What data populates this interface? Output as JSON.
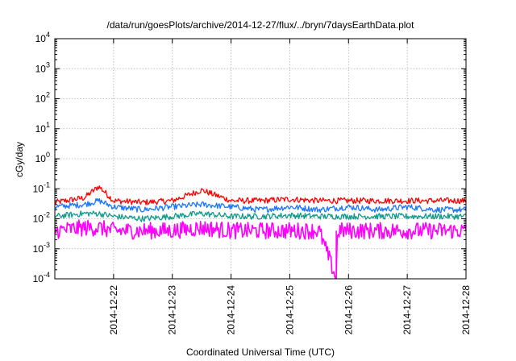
{
  "chart_data": {
    "type": "line",
    "title": "/data/run/goesPlots/archive/2014-12-27/flux/../bryn/7daysEarthData.plot",
    "xlabel": "Coordinated Universal Time (UTC)",
    "ylabel": "cGy/day",
    "yscale": "log",
    "ylim": [
      0.0001,
      10000
    ],
    "xlim": [
      "2014-12-21T00:00",
      "2014-12-28T00:00"
    ],
    "grid": true,
    "legend": "none",
    "x_ticks": [
      "2014-12-22",
      "2014-12-23",
      "2014-12-24",
      "2014-12-25",
      "2014-12-26",
      "2014-12-27",
      "2014-12-28"
    ],
    "y_ticks": [
      {
        "base": "10",
        "exp": "-4"
      },
      {
        "base": "10",
        "exp": "-3"
      },
      {
        "base": "10",
        "exp": "-2"
      },
      {
        "base": "10",
        "exp": "-1"
      },
      {
        "base": "10",
        "exp": "0"
      },
      {
        "base": "10",
        "exp": "1"
      },
      {
        "base": "10",
        "exp": "2"
      },
      {
        "base": "10",
        "exp": "3"
      },
      {
        "base": "10",
        "exp": "4"
      }
    ],
    "series": [
      {
        "color": "#ff0000",
        "x": [
          "2014-12-21T00:00",
          "2014-12-21T12:00",
          "2014-12-21T18:00",
          "2014-12-22T00:00",
          "2014-12-22T12:00",
          "2014-12-23T00:00",
          "2014-12-23T12:00",
          "2014-12-24T00:00",
          "2014-12-24T12:00",
          "2014-12-25T00:00",
          "2014-12-25T12:00",
          "2014-12-26T00:00",
          "2014-12-26T12:00",
          "2014-12-27T00:00",
          "2014-12-27T12:00",
          "2014-12-28T00:00"
        ],
        "y": [
          0.035,
          0.05,
          0.12,
          0.04,
          0.035,
          0.04,
          0.09,
          0.04,
          0.04,
          0.045,
          0.04,
          0.04,
          0.04,
          0.04,
          0.04,
          0.04
        ]
      },
      {
        "color": "#1a75ff",
        "x": [
          "2014-12-21T00:00",
          "2014-12-21T12:00",
          "2014-12-21T18:00",
          "2014-12-22T00:00",
          "2014-12-22T12:00",
          "2014-12-23T00:00",
          "2014-12-23T12:00",
          "2014-12-24T00:00",
          "2014-12-24T12:00",
          "2014-12-25T00:00",
          "2014-12-25T12:00",
          "2014-12-26T00:00",
          "2014-12-26T12:00",
          "2014-12-27T00:00",
          "2014-12-27T12:00",
          "2014-12-28T00:00"
        ],
        "y": [
          0.025,
          0.03,
          0.04,
          0.025,
          0.02,
          0.025,
          0.03,
          0.025,
          0.02,
          0.025,
          0.02,
          0.025,
          0.02,
          0.025,
          0.02,
          0.02
        ]
      },
      {
        "color": "#0f9a8c",
        "x": [
          "2014-12-21T00:00",
          "2014-12-21T12:00",
          "2014-12-21T18:00",
          "2014-12-22T00:00",
          "2014-12-22T12:00",
          "2014-12-23T00:00",
          "2014-12-23T12:00",
          "2014-12-24T00:00",
          "2014-12-24T12:00",
          "2014-12-25T00:00",
          "2014-12-25T12:00",
          "2014-12-26T00:00",
          "2014-12-26T12:00",
          "2014-12-27T00:00",
          "2014-12-27T12:00",
          "2014-12-28T00:00"
        ],
        "y": [
          0.012,
          0.015,
          0.015,
          0.012,
          0.01,
          0.012,
          0.015,
          0.012,
          0.012,
          0.013,
          0.012,
          0.012,
          0.012,
          0.012,
          0.012,
          0.012
        ]
      },
      {
        "color": "#ff00ff",
        "x": [
          "2014-12-21T00:00",
          "2014-12-21T12:00",
          "2014-12-21T18:00",
          "2014-12-22T00:00",
          "2014-12-22T12:00",
          "2014-12-23T00:00",
          "2014-12-23T12:00",
          "2014-12-24T00:00",
          "2014-12-24T12:00",
          "2014-12-25T00:00",
          "2014-12-25T12:00",
          "2014-12-25T19:00",
          "2014-12-25T19:30",
          "2014-12-26T00:00",
          "2014-12-26T12:00",
          "2014-12-27T00:00",
          "2014-12-27T12:00",
          "2014-12-28T00:00"
        ],
        "y": [
          0.004,
          0.005,
          0.005,
          0.004,
          0.004,
          0.004,
          0.005,
          0.004,
          0.004,
          0.004,
          0.004,
          0.0001,
          0.004,
          0.004,
          0.004,
          0.004,
          0.004,
          0.004
        ]
      }
    ]
  }
}
